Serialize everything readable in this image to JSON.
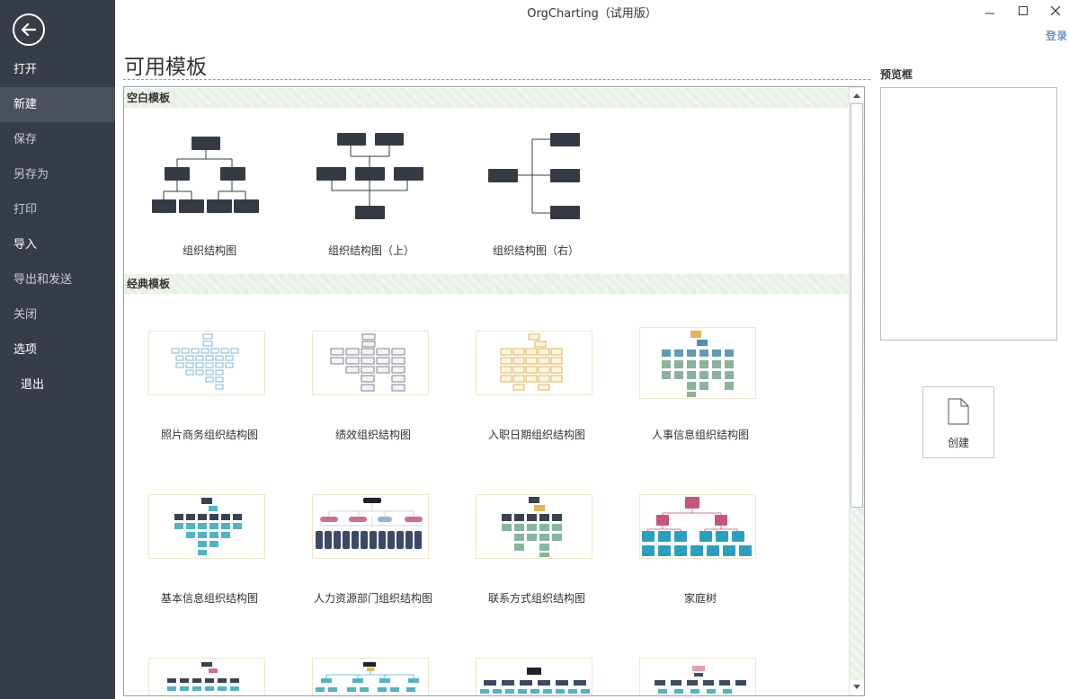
{
  "window": {
    "title": "OrgCharting（试用版）",
    "minimize_icon": "minimize-icon",
    "maximize_icon": "maximize-icon",
    "close_icon": "close-icon",
    "login": "登录"
  },
  "sidebar": {
    "back_icon": "back-arrow-icon",
    "items": [
      {
        "label": "打开"
      },
      {
        "label": "新建"
      },
      {
        "label": "保存"
      },
      {
        "label": "另存为"
      },
      {
        "label": "打印"
      },
      {
        "label": "导入"
      },
      {
        "label": "导出和发送"
      },
      {
        "label": "关闭"
      },
      {
        "label": "选项"
      },
      {
        "label": "退出"
      }
    ]
  },
  "main": {
    "heading": "可用模板",
    "sections": {
      "blank": {
        "title": "空白模板",
        "templates": [
          {
            "label": "组织结构图"
          },
          {
            "label": "组织结构图（上）"
          },
          {
            "label": "组织结构图（右）"
          }
        ]
      },
      "classic": {
        "title": "经典模板",
        "templates": [
          {
            "label": "照片商务组织结构图"
          },
          {
            "label": "绩效组织结构图"
          },
          {
            "label": "入职日期组织结构图"
          },
          {
            "label": "人事信息组织结构图"
          },
          {
            "label": "基本信息组织结构图"
          },
          {
            "label": "人力资源部门组织结构图"
          },
          {
            "label": "联系方式组织结构图"
          },
          {
            "label": "家庭树"
          }
        ]
      }
    }
  },
  "preview": {
    "label": "预览框",
    "create": "创建"
  },
  "colors": {
    "sidebar": "#373d48",
    "node_dark": "#353b44",
    "link": "#2b5db0"
  }
}
